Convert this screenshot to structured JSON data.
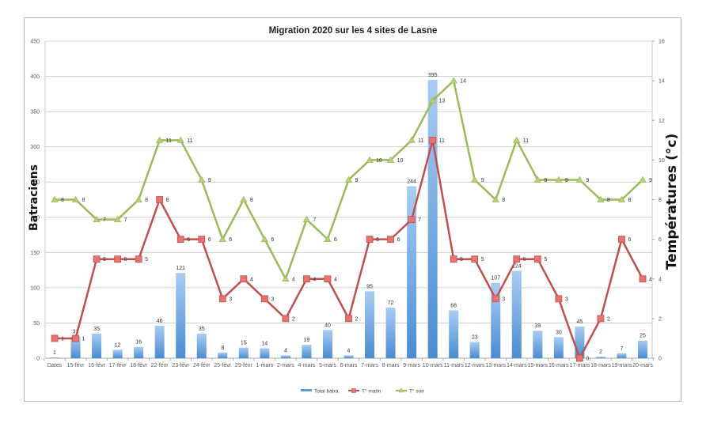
{
  "chart_data": {
    "type": "bar+line",
    "title": "Migration 2020 sur les 4 sites de Lasne",
    "xlabel": "",
    "ylabel": "Batraciens",
    "ylabel_right": "Températures (°c)",
    "ylim": [
      0,
      450
    ],
    "yticks": [
      0,
      50,
      100,
      150,
      200,
      250,
      300,
      350,
      400,
      450
    ],
    "ylim_right": [
      0,
      16
    ],
    "yticks_right": [
      0,
      2,
      4,
      6,
      8,
      10,
      12,
      14,
      16
    ],
    "grid": true,
    "legend_position": "bottom",
    "categories": [
      "Dates",
      "15-févr",
      "16-févr",
      "17-févr",
      "18-févr",
      "22-févr",
      "23-févr",
      "24-févr",
      "25-févr",
      "29-févr",
      "1-mars",
      "2-mars",
      "4-mars",
      "5-mars",
      "6-mars",
      "7-mars",
      "8-mars",
      "9-mars",
      "10-mars",
      "11-mars",
      "12-mars",
      "13-mars",
      "14-mars",
      "15-mars",
      "16-mars",
      "17-mars",
      "18-mars",
      "19-mars",
      "20-mars"
    ],
    "series": [
      {
        "name": "Total batra.",
        "type": "bar",
        "axis": "left",
        "color": "#5b9bd5",
        "values": [
          1,
          31,
          35,
          12,
          16,
          46,
          121,
          35,
          8,
          15,
          14,
          4,
          19,
          40,
          4,
          95,
          72,
          244,
          395,
          68,
          23,
          107,
          124,
          39,
          30,
          45,
          2,
          7,
          25
        ]
      },
      {
        "name": "T° matin",
        "type": "line",
        "axis": "right",
        "color": "#c0504d",
        "values": [
          1,
          1,
          5,
          5,
          5,
          8,
          6,
          6,
          3,
          4,
          3,
          2,
          4,
          4,
          2,
          6,
          6,
          7,
          11,
          5,
          5,
          3,
          5,
          5,
          3,
          0,
          2,
          6,
          4
        ]
      },
      {
        "name": "T° soir",
        "type": "line",
        "axis": "right",
        "color": "#9bbb59",
        "values": [
          8,
          8,
          7,
          7,
          8,
          11,
          11,
          9,
          6,
          8,
          6,
          4,
          7,
          6,
          9,
          10,
          10,
          11,
          13,
          14,
          9,
          8,
          11,
          9,
          9,
          9,
          8,
          8,
          9
        ]
      }
    ]
  }
}
